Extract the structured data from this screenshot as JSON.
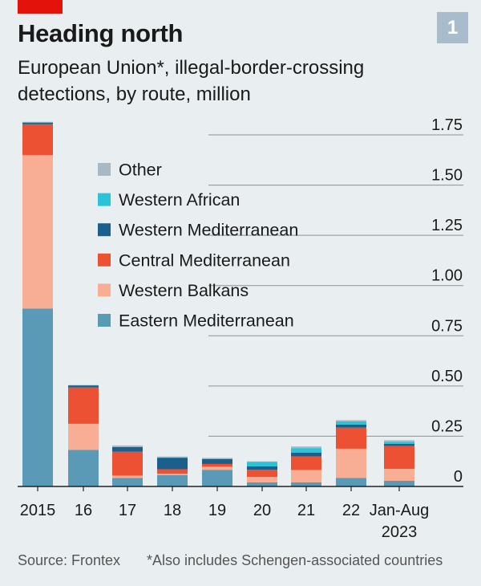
{
  "title": "Heading north",
  "subtitle": "European Union*, illegal-border-crossing detections, by route, million",
  "badge": "1",
  "source": "Source: Frontex",
  "note": "*Also includes Schengen-associated countries",
  "colors": {
    "Eastern Mediterranean": "#5b9ab7",
    "Western Balkans": "#f7ae94",
    "Central Mediterranean": "#ec5133",
    "Western Mediterranean": "#1b5f8c",
    "Western African": "#2ac4d8",
    "Other": "#a8b9c4"
  },
  "chart_data": {
    "type": "bar",
    "stacked": true,
    "categories": [
      "2015",
      "16",
      "17",
      "18",
      "19",
      "20",
      "21",
      "22",
      "Jan-Aug 2023"
    ],
    "category_lines": [
      [
        "2015"
      ],
      [
        "16"
      ],
      [
        "17"
      ],
      [
        "18"
      ],
      [
        "19"
      ],
      [
        "20"
      ],
      [
        "21"
      ],
      [
        "22"
      ],
      [
        "Jan-Aug",
        "2023"
      ]
    ],
    "ylim": [
      0,
      1.75
    ],
    "yticks": [
      {
        "value": 0,
        "label": "0"
      },
      {
        "value": 0.25,
        "label": "0.25"
      },
      {
        "value": 0.5,
        "label": "0.50"
      },
      {
        "value": 0.75,
        "label": "0.75"
      },
      {
        "value": 1.0,
        "label": "1.00"
      },
      {
        "value": 1.25,
        "label": "1.25"
      },
      {
        "value": 1.5,
        "label": "1.50"
      },
      {
        "value": 1.75,
        "label": "1.75"
      }
    ],
    "grid": true,
    "legend_position": "upper-center",
    "legend_order": [
      "Other",
      "Western African",
      "Western Mediterranean",
      "Central Mediterranean",
      "Western Balkans",
      "Eastern Mediterranean"
    ],
    "series": [
      {
        "name": "Eastern Mediterranean",
        "values": [
          0.885,
          0.182,
          0.042,
          0.057,
          0.083,
          0.02,
          0.02,
          0.043,
          0.028
        ]
      },
      {
        "name": "Western Balkans",
        "values": [
          0.764,
          0.13,
          0.012,
          0.006,
          0.015,
          0.027,
          0.062,
          0.145,
          0.06
        ]
      },
      {
        "name": "Central Mediterranean",
        "values": [
          0.154,
          0.181,
          0.119,
          0.023,
          0.014,
          0.036,
          0.068,
          0.105,
          0.114
        ]
      },
      {
        "name": "Western Mediterranean",
        "values": [
          0.008,
          0.01,
          0.023,
          0.057,
          0.024,
          0.017,
          0.018,
          0.015,
          0.01
        ]
      },
      {
        "name": "Western African",
        "values": [
          0.001,
          0.001,
          0.001,
          0.001,
          0.002,
          0.023,
          0.023,
          0.016,
          0.01
        ]
      },
      {
        "name": "Other",
        "values": [
          0.003,
          0.001,
          0.007,
          0.005,
          0.004,
          0.002,
          0.008,
          0.006,
          0.008
        ]
      }
    ]
  }
}
